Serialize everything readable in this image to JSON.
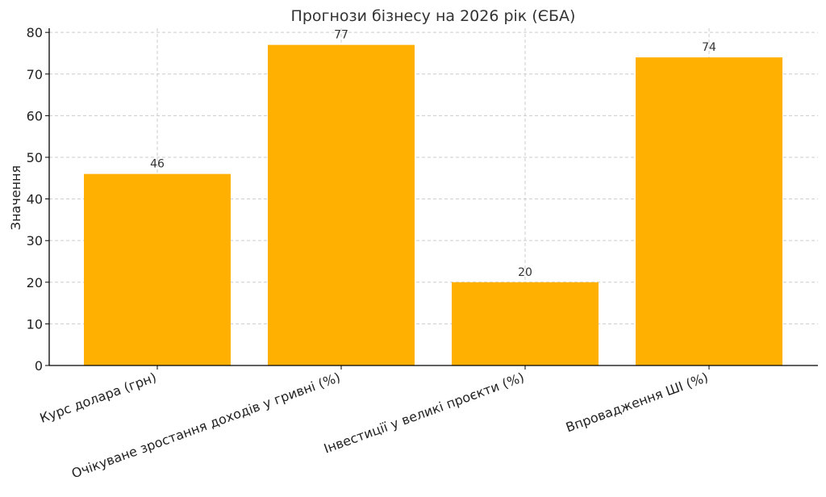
{
  "chart_data": {
    "type": "bar",
    "title": "Прогнози бізнесу на 2026 рік (ЄБА)",
    "xlabel": "",
    "ylabel": "Значення",
    "categories": [
      "Курс долара (грн)",
      "Очікуване зростання доходів у гривні (%)",
      "Інвестиції у великі проєкти (%)",
      "Впровадження ШІ (%)"
    ],
    "values": [
      46,
      77,
      20,
      74
    ],
    "ylim": [
      0,
      81
    ],
    "yticks": [
      0,
      10,
      20,
      30,
      40,
      50,
      60,
      70,
      80
    ],
    "grid": true,
    "bar_color": "#FFB000",
    "data_labels": [
      "46",
      "77",
      "20",
      "74"
    ]
  }
}
